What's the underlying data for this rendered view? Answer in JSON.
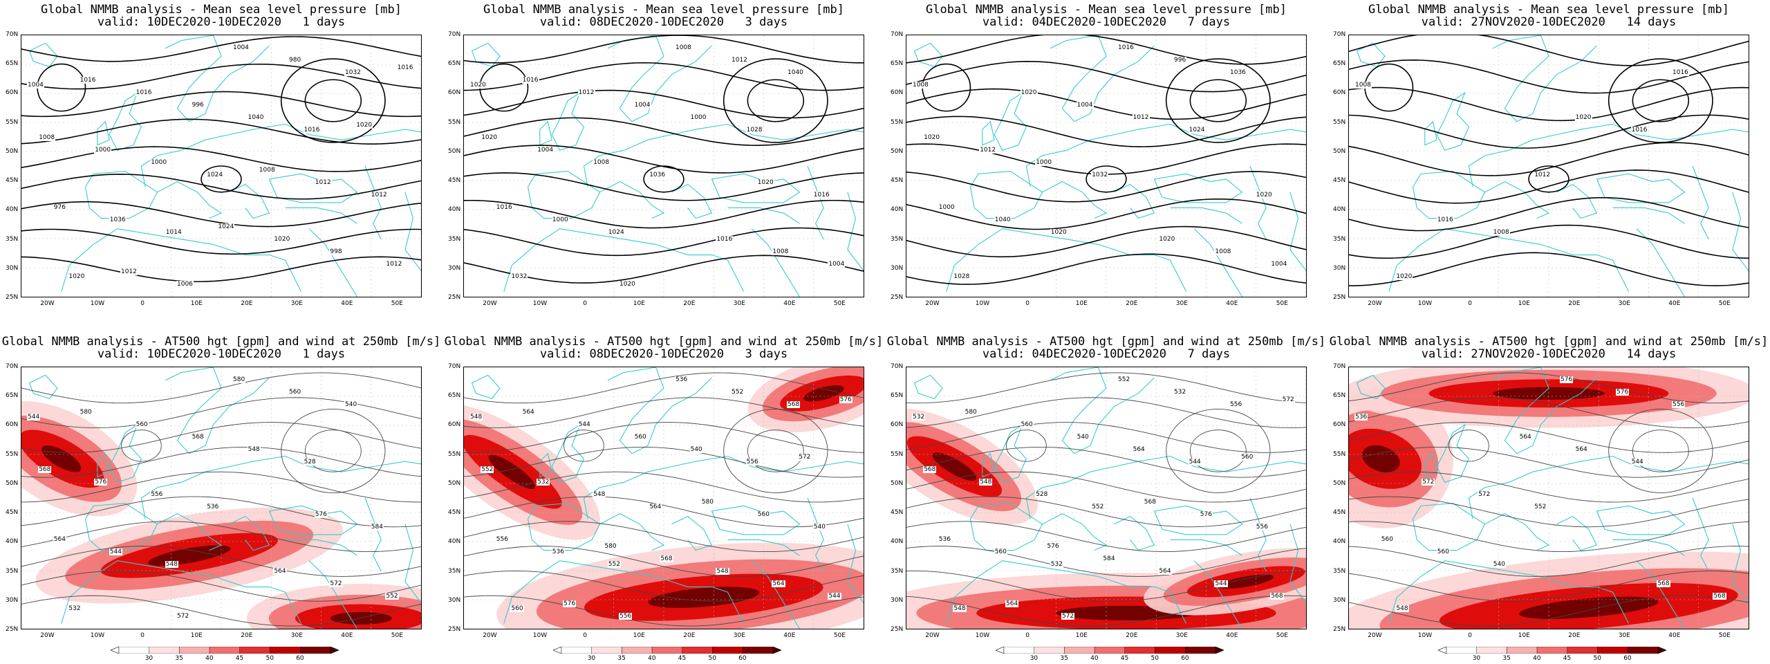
{
  "panels": [
    {
      "title": "Global NMMB analysis - Mean sea level pressure [mb]",
      "valid": "valid: 10DEC2020-10DEC2020   1 days",
      "kind": "slp",
      "labels": [
        "1004",
        "1014",
        "1016",
        "1020",
        "1024",
        "1032",
        "1036",
        "1040",
        "1012",
        "1000",
        "980",
        "976",
        "996",
        "998",
        "1000",
        "1004",
        "1012",
        "1016",
        "1020",
        "1008",
        "1006",
        "1012",
        "1016",
        "1024",
        "1020",
        "1012",
        "1008",
        "1016"
      ]
    },
    {
      "title": "Global NMMB analysis - Mean sea level pressure [mb]",
      "valid": "valid: 08DEC2020-10DEC2020   3 days",
      "kind": "slp",
      "labels": [
        "1020",
        "1024",
        "1028",
        "1032",
        "1036",
        "1040",
        "1000",
        "1000",
        "1004",
        "1008",
        "1012",
        "1016",
        "1004",
        "1008",
        "1004",
        "1008",
        "1016",
        "1012",
        "1016",
        "1020",
        "1020",
        "1020",
        "1016"
      ]
    },
    {
      "title": "Global NMMB analysis - Mean sea level pressure [mb]",
      "valid": "valid: 04DEC2020-10DEC2020   7 days",
      "kind": "slp",
      "labels": [
        "1008",
        "1020",
        "1024",
        "1028",
        "1032",
        "1036",
        "1040",
        "1012",
        "1004",
        "1000",
        "996",
        "1000",
        "1004",
        "1008",
        "1012",
        "1016",
        "1020",
        "1020",
        "1020",
        "1020"
      ]
    },
    {
      "title": "Global NMMB analysis - Mean sea level pressure [mb]",
      "valid": "valid: 27NOV2020-10DEC2020   14 days",
      "kind": "slp",
      "labels": [
        "1008",
        "1008",
        "1016",
        "1020",
        "1012",
        "1016",
        "1016",
        "1020"
      ]
    },
    {
      "title": "Global NMMB analysis - AT500 hgt [gpm] and wind at 250mb [m/s]",
      "valid": "valid: 10DEC2020-10DEC2020   1 days",
      "kind": "hgt",
      "labels": [
        "544",
        "548",
        "528",
        "532",
        "536",
        "540",
        "544",
        "548",
        "552",
        "556",
        "560",
        "564",
        "568",
        "572",
        "576",
        "580",
        "584",
        "560",
        "564",
        "568",
        "572",
        "576",
        "580"
      ]
    },
    {
      "title": "Global NMMB analysis - AT500 hgt [gpm] and wind at 250mb [m/s]",
      "valid": "valid: 08DEC2020-10DEC2020   3 days",
      "kind": "hgt",
      "labels": [
        "548",
        "552",
        "556",
        "560",
        "564",
        "568",
        "536",
        "540",
        "544",
        "548",
        "552",
        "556",
        "560",
        "564",
        "532",
        "536",
        "540",
        "544",
        "548",
        "552",
        "556",
        "560",
        "564",
        "568",
        "572",
        "576",
        "580",
        "576",
        "580"
      ]
    },
    {
      "title": "Global NMMB analysis - AT500 hgt [gpm] and wind at 250mb [m/s]",
      "valid": "valid: 04DEC2020-10DEC2020   7 days",
      "kind": "hgt",
      "labels": [
        "532",
        "532",
        "544",
        "548",
        "552",
        "556",
        "560",
        "564",
        "568",
        "528",
        "532",
        "536",
        "540",
        "544",
        "548",
        "552",
        "556",
        "560",
        "564",
        "568",
        "572",
        "576",
        "580",
        "584",
        "560",
        "564",
        "568",
        "572",
        "576"
      ]
    },
    {
      "title": "Global NMMB analysis - AT500 hgt [gpm] and wind at 250mb [m/s]",
      "valid": "valid: 27NOV2020-10DEC2020   14 days",
      "kind": "hgt",
      "labels": [
        "536",
        "540",
        "544",
        "548",
        "552",
        "556",
        "560",
        "564",
        "568",
        "572",
        "576",
        "560",
        "564",
        "568",
        "572",
        "576"
      ]
    }
  ],
  "lat_ticks": [
    "70N",
    "65N",
    "60N",
    "55N",
    "50N",
    "45N",
    "40N",
    "35N",
    "30N",
    "25N"
  ],
  "lon_ticks": [
    "20W",
    "10W",
    "0",
    "10E",
    "20E",
    "30E",
    "40E",
    "50E"
  ],
  "colorbar_ticks": [
    "30",
    "35",
    "40",
    "45",
    "50",
    "60"
  ],
  "colors": {
    "coast": "#33cccc",
    "contour": "#000000",
    "wind_low": "#fcd4d4",
    "wind_mid": "#f06a6a",
    "wind_high": "#dd0000",
    "wind_max": "#600000",
    "grid": "#bbbbbb"
  }
}
